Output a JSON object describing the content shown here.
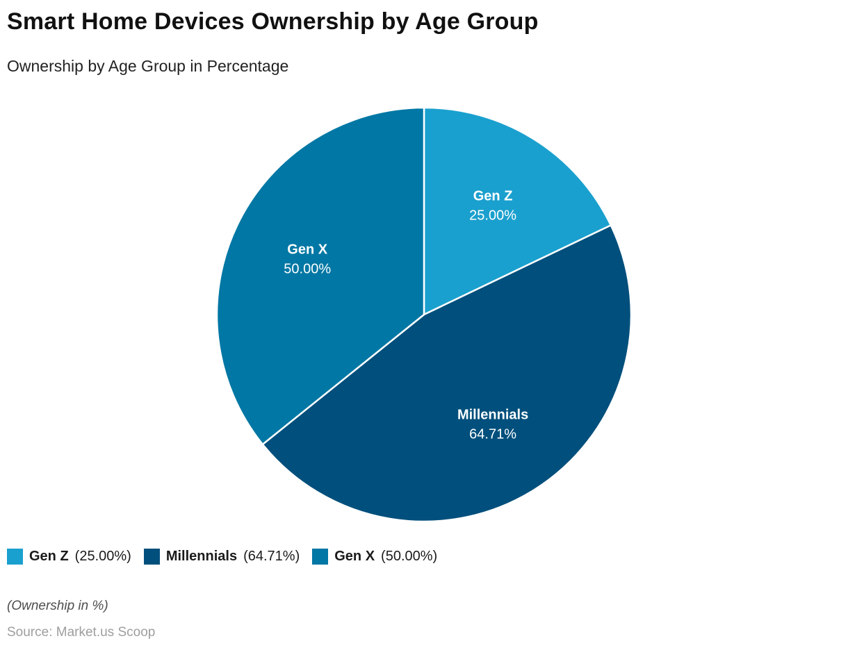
{
  "header": {
    "title": "Smart Home Devices Ownership by Age Group",
    "subtitle": "Ownership by Age Group in Percentage"
  },
  "chart_data": {
    "type": "pie",
    "title": "Smart Home Devices Ownership by Age Group",
    "subtitle": "Ownership by Age Group in Percentage",
    "categories": [
      "Gen Z",
      "Millennials",
      "Gen X"
    ],
    "values": [
      25.0,
      64.71,
      50.0
    ],
    "slice_labels": [
      {
        "name": "Gen Z",
        "value": "25.00%"
      },
      {
        "name": "Millennials",
        "value": "64.71%"
      },
      {
        "name": "Gen X",
        "value": "50.00%"
      }
    ],
    "colors": [
      "#1AA0CE",
      "#004F7C",
      "#0077A4"
    ],
    "slice_stroke_color": "#ffffff",
    "start_angle": "top (12 o'clock), clockwise",
    "legend_position": "bottom-left",
    "note": "values sum to 139.71; slice angles are proportional to value/total"
  },
  "legend": {
    "items": [
      {
        "name": "Gen Z",
        "value_label": "(25.00%)",
        "color": "#1AA0CE"
      },
      {
        "name": "Millennials",
        "value_label": "(64.71%)",
        "color": "#004F7C"
      },
      {
        "name": "Gen X",
        "value_label": "(50.00%)",
        "color": "#0077A4"
      }
    ]
  },
  "footer": {
    "note": "(Ownership in %)",
    "source": "Source: Market.us Scoop"
  }
}
